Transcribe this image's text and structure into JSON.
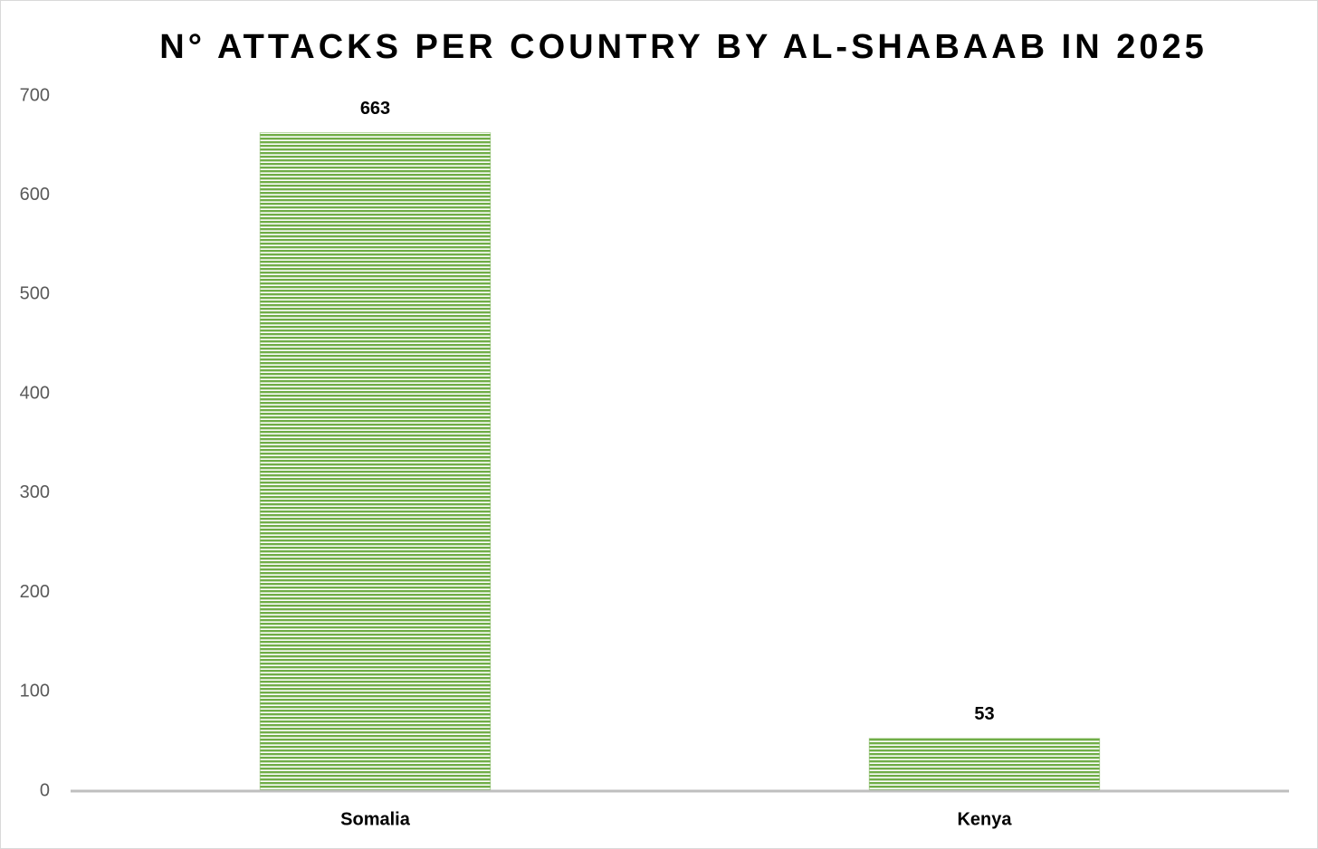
{
  "chart_data": {
    "type": "bar",
    "title": "N° ATTACKS PER COUNTRY BY AL-SHABAAB IN 2025",
    "categories": [
      "Somalia",
      "Kenya"
    ],
    "values": [
      663,
      53
    ],
    "color": "#70ad47",
    "ylim": [
      0,
      700
    ],
    "yticks": [
      0,
      100,
      200,
      300,
      400,
      500,
      600,
      700
    ],
    "grid": false
  }
}
